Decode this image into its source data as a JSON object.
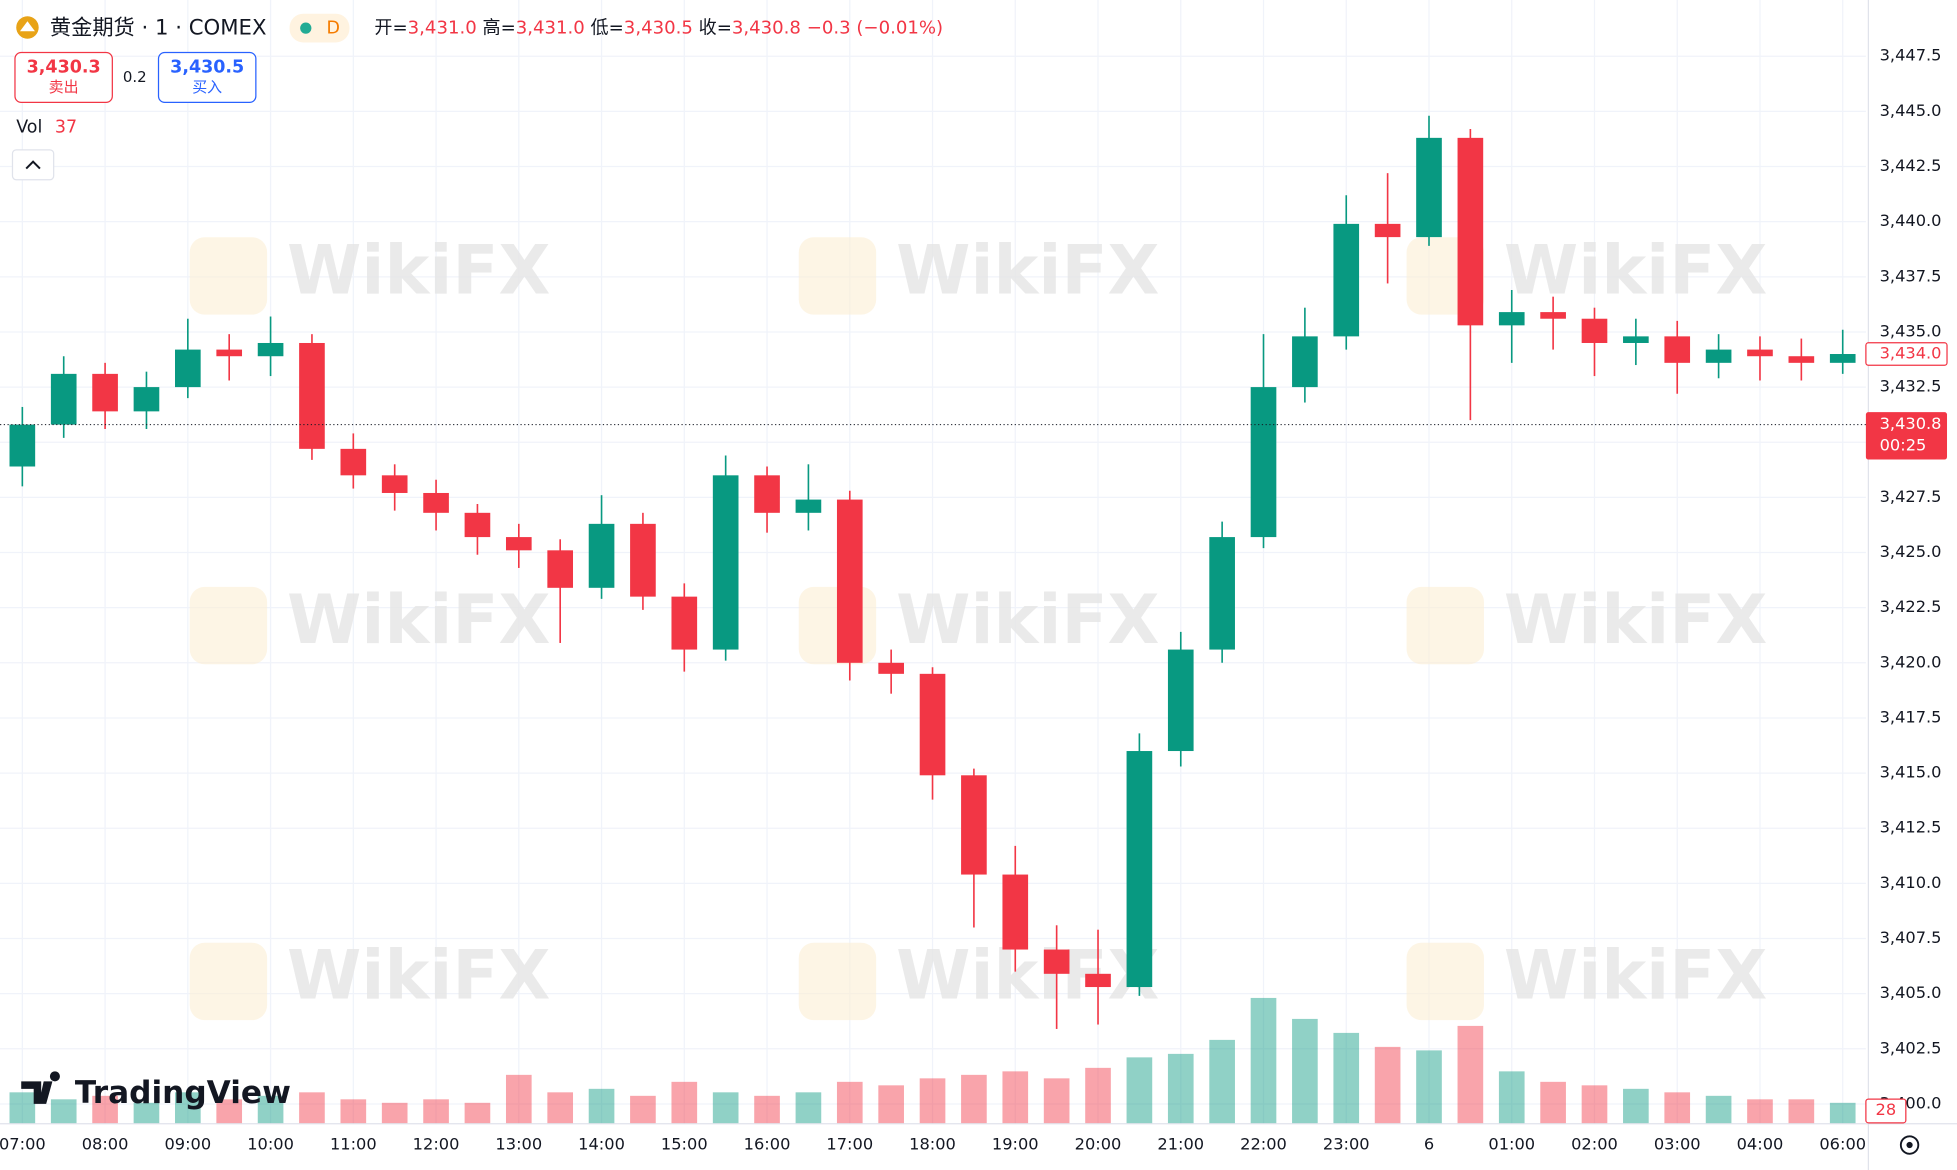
{
  "header": {
    "symbol": "黄金期货 · 1 · COMEX",
    "badge": "D",
    "ohlc": [
      {
        "key": "开=",
        "value": "3,431.0"
      },
      {
        "key": "高=",
        "value": "3,431.0"
      },
      {
        "key": "低=",
        "value": "3,430.5"
      },
      {
        "key": "收=",
        "value": "3,430.8"
      }
    ],
    "change": "−0.3 (−0.01%)"
  },
  "trade": {
    "sell_price": "3,430.3",
    "sell_label": "卖出",
    "spread": "0.2",
    "buy_price": "3,430.5",
    "buy_label": "买入"
  },
  "volume_legend": {
    "label": "Vol",
    "value": "37"
  },
  "watermark": "WikiFX",
  "brand": "TradingView",
  "chart_data": {
    "type": "candlestick",
    "x": [
      0,
      0.5,
      1,
      1.5,
      2,
      2.5,
      3,
      3.5,
      4,
      4.5,
      5,
      5.5,
      6,
      6.5,
      7,
      7.5,
      8,
      8.5,
      9,
      9.5,
      10,
      10.5,
      11,
      11.5,
      12,
      12.5,
      13,
      13.5,
      14,
      14.5,
      15,
      15.5,
      16,
      16.5,
      17,
      17.5,
      18,
      18.5,
      19,
      19.5,
      20,
      20.5,
      21,
      21.5,
      22
    ],
    "open": [
      3428.9,
      3430.8,
      3433.1,
      3431.4,
      3432.5,
      3434.2,
      3433.9,
      3434.5,
      3429.7,
      3428.5,
      3427.7,
      3426.8,
      3425.7,
      3425.1,
      3423.4,
      3426.3,
      3423.0,
      3420.6,
      3428.5,
      3426.8,
      3427.4,
      3420.0,
      3419.5,
      3414.9,
      3410.4,
      3407.0,
      3405.9,
      3405.3,
      3416.0,
      3420.6,
      3425.7,
      3432.5,
      3434.8,
      3439.9,
      3439.3,
      3443.8,
      3435.3,
      3435.9,
      3435.6,
      3434.5,
      3434.8,
      3433.6,
      3434.2,
      3433.9,
      3433.6
    ],
    "high": [
      3431.6,
      3433.9,
      3433.6,
      3433.2,
      3435.6,
      3434.9,
      3435.7,
      3434.9,
      3430.4,
      3429.0,
      3428.3,
      3427.2,
      3426.3,
      3425.6,
      3427.6,
      3426.8,
      3423.6,
      3429.4,
      3428.9,
      3429.0,
      3427.8,
      3420.6,
      3419.8,
      3415.2,
      3411.7,
      3408.1,
      3407.9,
      3416.8,
      3421.4,
      3426.4,
      3434.9,
      3436.1,
      3441.2,
      3442.2,
      3444.8,
      3444.2,
      3436.9,
      3436.6,
      3436.1,
      3435.6,
      3435.5,
      3434.9,
      3434.8,
      3434.7,
      3435.1
    ],
    "low": [
      3428.0,
      3430.2,
      3430.6,
      3430.6,
      3432.0,
      3432.8,
      3433.0,
      3429.2,
      3427.9,
      3426.9,
      3426.0,
      3424.9,
      3424.3,
      3420.9,
      3422.9,
      3422.4,
      3419.6,
      3420.1,
      3425.9,
      3426.0,
      3419.2,
      3418.6,
      3413.8,
      3408.0,
      3406.0,
      3403.4,
      3403.6,
      3404.9,
      3415.3,
      3420.0,
      3425.2,
      3431.8,
      3434.2,
      3437.2,
      3438.9,
      3431.0,
      3433.6,
      3434.2,
      3433.0,
      3433.5,
      3432.2,
      3432.9,
      3432.8,
      3432.8,
      3433.1
    ],
    "close": [
      3430.8,
      3433.1,
      3431.4,
      3432.5,
      3434.2,
      3433.9,
      3434.5,
      3429.7,
      3428.5,
      3427.7,
      3426.8,
      3425.7,
      3425.1,
      3423.4,
      3426.3,
      3423.0,
      3420.6,
      3428.5,
      3426.8,
      3427.4,
      3420.0,
      3419.5,
      3414.9,
      3410.4,
      3407.0,
      3405.9,
      3405.3,
      3416.0,
      3420.6,
      3425.7,
      3432.5,
      3434.8,
      3439.9,
      3439.3,
      3443.8,
      3435.3,
      3435.9,
      3435.6,
      3434.5,
      3434.8,
      3433.6,
      3434.2,
      3433.9,
      3433.6,
      3434.0
    ],
    "volume": [
      900,
      700,
      800,
      600,
      900,
      700,
      800,
      900,
      700,
      600,
      700,
      600,
      1400,
      900,
      1000,
      800,
      1200,
      900,
      800,
      900,
      1200,
      1100,
      1300,
      1400,
      1500,
      1300,
      1600,
      1900,
      2000,
      2400,
      3600,
      3000,
      2600,
      2200,
      2100,
      2800,
      1500,
      1200,
      1100,
      1000,
      900,
      800,
      700,
      700,
      600
    ],
    "volume_ylim": [
      0,
      10000
    ],
    "up_color": "#089981",
    "down_color": "#f23645",
    "xlim": [
      -0.27,
      22.28
    ],
    "xticks": [
      {
        "value": 0,
        "label": "07:00"
      },
      {
        "value": 1,
        "label": "08:00"
      },
      {
        "value": 2,
        "label": "09:00"
      },
      {
        "value": 3,
        "label": "10:00"
      },
      {
        "value": 4,
        "label": "11:00"
      },
      {
        "value": 5,
        "label": "12:00"
      },
      {
        "value": 6,
        "label": "13:00"
      },
      {
        "value": 7,
        "label": "14:00"
      },
      {
        "value": 8,
        "label": "15:00"
      },
      {
        "value": 9,
        "label": "16:00"
      },
      {
        "value": 10,
        "label": "17:00"
      },
      {
        "value": 11,
        "label": "18:00"
      },
      {
        "value": 12,
        "label": "19:00"
      },
      {
        "value": 13,
        "label": "20:00"
      },
      {
        "value": 14,
        "label": "21:00"
      },
      {
        "value": 15,
        "label": "22:00"
      },
      {
        "value": 16,
        "label": "23:00"
      },
      {
        "value": 17,
        "label": "6"
      },
      {
        "value": 18,
        "label": "01:00"
      },
      {
        "value": 19,
        "label": "02:00"
      },
      {
        "value": 20,
        "label": "03:00"
      },
      {
        "value": 21,
        "label": "04:00"
      },
      {
        "value": 22,
        "label": "06:00"
      }
    ],
    "ylim": [
      3399.1,
      3450.05
    ],
    "yticks": [
      {
        "value": 3400.0,
        "label": "3,400.0"
      },
      {
        "value": 3402.5,
        "label": "3,402.5"
      },
      {
        "value": 3405.0,
        "label": "3,405.0"
      },
      {
        "value": 3407.5,
        "label": "3,407.5"
      },
      {
        "value": 3410.0,
        "label": "3,410.0"
      },
      {
        "value": 3412.5,
        "label": "3,412.5"
      },
      {
        "value": 3415.0,
        "label": "3,415.0"
      },
      {
        "value": 3417.5,
        "label": "3,417.5"
      },
      {
        "value": 3420.0,
        "label": "3,420.0"
      },
      {
        "value": 3422.5,
        "label": "3,422.5"
      },
      {
        "value": 3425.0,
        "label": "3,425.0"
      },
      {
        "value": 3427.5,
        "label": "3,427.5"
      },
      {
        "value": 3430.0,
        "label": "3,430.0"
      },
      {
        "value": 3432.5,
        "label": "3,432.5"
      },
      {
        "value": 3435.0,
        "label": "3,435.0"
      },
      {
        "value": 3437.5,
        "label": "3,437.5"
      },
      {
        "value": 3440.0,
        "label": "3,440.0"
      },
      {
        "value": 3442.5,
        "label": "3,442.5"
      },
      {
        "value": 3445.0,
        "label": "3,445.0"
      },
      {
        "value": 3447.5,
        "label": "3,447.5"
      }
    ],
    "grid": true,
    "marker_price": {
      "value": 3434.0,
      "label": "3,434.0"
    },
    "last_price": {
      "value": 3430.8,
      "label": "3,430.8"
    },
    "countdown": "00:25",
    "last_volume": 28
  }
}
